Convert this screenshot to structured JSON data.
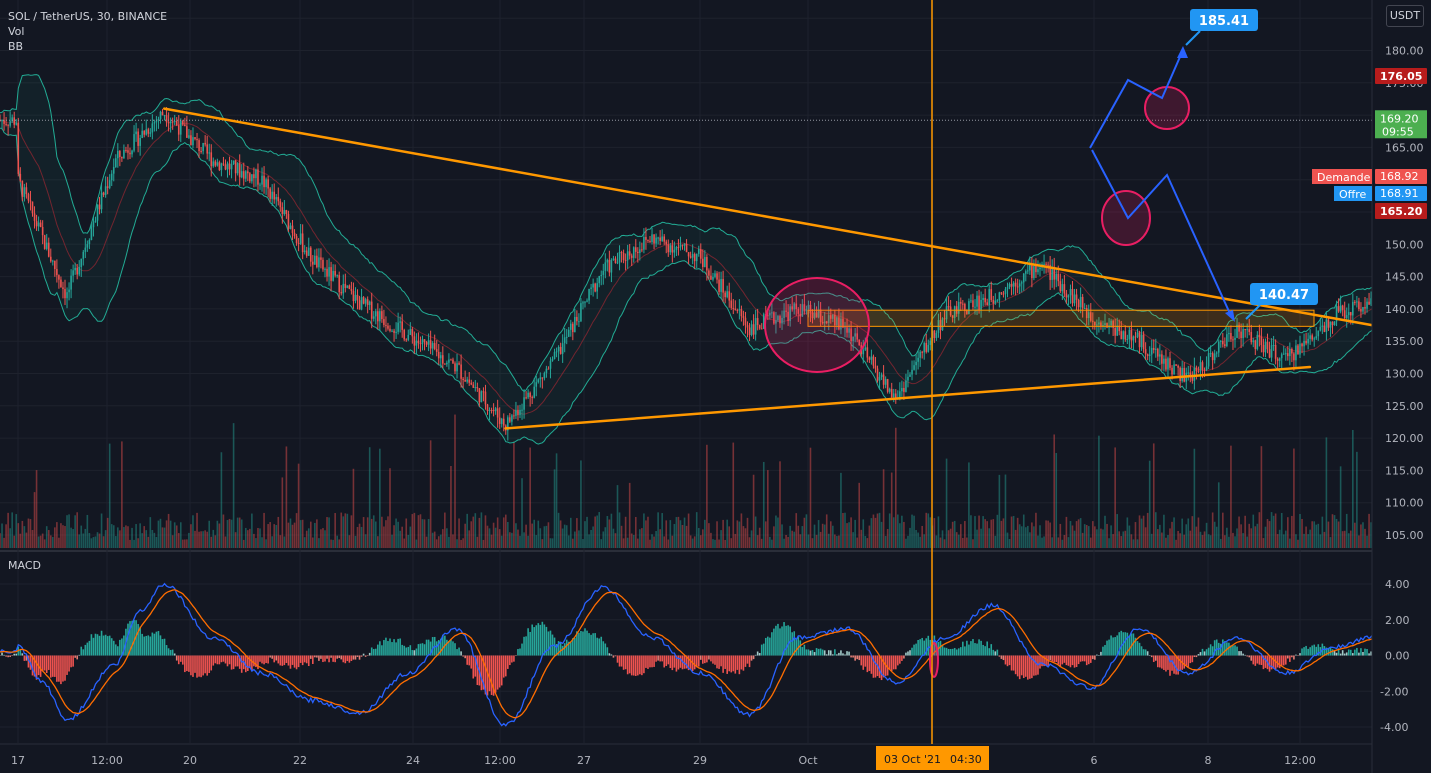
{
  "header": {
    "title": "SOL / TetherUS, 30, BINANCE",
    "vol_label": "Vol",
    "bb_label": "BB",
    "macd_label": "MACD",
    "currency": "USDT"
  },
  "chart_data": [
    {
      "type": "candlestick",
      "title": "SOL / TetherUS, 30, BINANCE",
      "ylabel": "USDT",
      "ylim": [
        103,
        190
      ],
      "y_ticks": [
        "185.00",
        "180.00",
        "175.00",
        "170.00",
        "165.00",
        "160.00",
        "155.00",
        "150.00",
        "145.00",
        "140.00",
        "135.00",
        "130.00",
        "125.00",
        "120.00",
        "115.00",
        "110.00",
        "105.00"
      ],
      "x_ticks": [
        "17",
        "12:00",
        "20",
        "22",
        "24",
        "12:00",
        "27",
        "29",
        "Oct",
        "6",
        "8",
        "12:00"
      ],
      "series_points": [
        [
          "17 Sep",
          160
        ],
        [
          "17 Sep 12:00",
          142
        ],
        [
          "18 Sep",
          163
        ],
        [
          "18 Sep 12:00",
          170.5
        ],
        [
          "19 Sep",
          163
        ],
        [
          "19 Sep 12:00",
          160
        ],
        [
          "20 Sep",
          148
        ],
        [
          "20 Sep 12:00",
          141
        ],
        [
          "21 Sep",
          136
        ],
        [
          "21 Sep 12:00",
          131
        ],
        [
          "22 Sep",
          122
        ],
        [
          "22 Sep 12:00",
          132
        ],
        [
          "23 Sep",
          146
        ],
        [
          "23 Sep 12:00",
          151
        ],
        [
          "24 Sep",
          148
        ],
        [
          "24 Sep 12:00",
          137
        ],
        [
          "25 Sep",
          140
        ],
        [
          "25 Sep 12:00",
          137
        ],
        [
          "26 Sep",
          126
        ],
        [
          "26 Sep 12:00",
          139
        ],
        [
          "27 Sep",
          142
        ],
        [
          "27 Sep 12:00",
          147
        ],
        [
          "28 Sep",
          139
        ],
        [
          "28 Sep 12:00",
          135
        ],
        [
          "29 Sep",
          129
        ],
        [
          "29 Sep 12:00",
          137
        ],
        [
          "30 Sep",
          132
        ],
        [
          "30 Sep 12:00",
          139
        ],
        [
          "1 Oct",
          142
        ],
        [
          "1 Oct 12:00",
          154
        ],
        [
          "2 Oct",
          164
        ],
        [
          "2 Oct 12:00",
          158
        ],
        [
          "3 Oct",
          170
        ],
        [
          "3 Oct 12:00",
          174
        ],
        [
          "4 Oct",
          170
        ],
        [
          "4 Oct 12:00",
          174
        ],
        [
          "5 Oct",
          168
        ],
        [
          "5 Oct 12:00",
          169.2
        ]
      ],
      "bollinger_bands": true,
      "volume": true,
      "price_labels": {
        "last": "169.20",
        "countdown": "09:55",
        "bid_label": "Demande",
        "bid": "168.92",
        "ask_label": "Offre",
        "ask": "168.91",
        "resistance": "176.05",
        "support": "165.20"
      },
      "annotations": {
        "target_up": "185.41",
        "target_down": "140.47",
        "crosshair_date": "03 Oct '21",
        "crosshair_time": "04:30",
        "triangle_upper": [
          [
            "18 Sep 12:00",
            171
          ],
          [
            "1 Oct 06:00",
            136.5
          ]
        ],
        "triangle_lower": [
          [
            "22 Sep",
            121.5
          ],
          [
            "30 Sep 06:00",
            131
          ]
        ],
        "resistance_line": [
          [
            "3 Oct",
            176.05
          ],
          [
            "8 Oct 12:00",
            176.05
          ]
        ],
        "support_line": [
          [
            "2 Oct",
            165.2
          ],
          [
            "8 Oct 12:00",
            165.2
          ]
        ],
        "demand_zone_upper": [
          155.6,
          157.2
        ],
        "demand_zone_lower": [
          137.3,
          139.8
        ]
      },
      "colors": {
        "background": "#131722",
        "up": "#26a69a",
        "down": "#ef5350",
        "trendline": "#ff9800",
        "level": "#d32f2f",
        "projection": "#2962ff",
        "target_label": "#2196f3",
        "bb": "#22ab94",
        "last_price": "#4caf50"
      }
    },
    {
      "type": "line",
      "title": "MACD",
      "ylim": [
        -4.6,
        5
      ],
      "y_ticks": [
        "4.00",
        "2.00",
        "0.00",
        "-2.00",
        "-4.00"
      ],
      "series": [
        {
          "name": "MACD",
          "color": "#2962ff"
        },
        {
          "name": "Signal",
          "color": "#ff6d00"
        }
      ],
      "macd_points": [
        [
          "17 Sep",
          0.5
        ],
        [
          "17 Sep 06:00",
          -1.5
        ],
        [
          "17 Sep 12:00",
          -3.6
        ],
        [
          "18 Sep",
          -0.5
        ],
        [
          "18 Sep 06:00",
          2.5
        ],
        [
          "18 Sep 12:00",
          4.0
        ],
        [
          "19 Sep",
          1.0
        ],
        [
          "19 Sep 12:00",
          -1.0
        ],
        [
          "20 Sep",
          -2.5
        ],
        [
          "20 Sep 12:00",
          -3.2
        ],
        [
          "21 Sep",
          -1.0
        ],
        [
          "21 Sep 12:00",
          1.5
        ],
        [
          "22 Sep",
          -3.9
        ],
        [
          "22 Sep 12:00",
          0.5
        ],
        [
          "23 Sep",
          3.8
        ],
        [
          "23 Sep 12:00",
          1.0
        ],
        [
          "24 Sep",
          -1.0
        ],
        [
          "24 Sep 12:00",
          -3.3
        ],
        [
          "25 Sep",
          1.0
        ],
        [
          "25 Sep 12:00",
          1.5
        ],
        [
          "26 Sep",
          -1.5
        ],
        [
          "26 Sep 12:00",
          1.0
        ],
        [
          "27 Sep",
          2.8
        ],
        [
          "27 Sep 12:00",
          -0.5
        ],
        [
          "28 Sep",
          -1.8
        ],
        [
          "28 Sep 12:00",
          1.5
        ],
        [
          "29 Sep",
          -1.0
        ],
        [
          "29 Sep 12:00",
          1.0
        ],
        [
          "30 Sep",
          -1.0
        ],
        [
          "30 Sep 12:00",
          0.5
        ],
        [
          "1 Oct",
          1.2
        ],
        [
          "1 Oct 12:00",
          4.6
        ],
        [
          "2 Oct",
          0.5
        ],
        [
          "2 Oct 12:00",
          3.2
        ],
        [
          "3 Oct",
          -1.4
        ],
        [
          "3 Oct 12:00",
          1.0
        ],
        [
          "4 Oct",
          -0.8
        ],
        [
          "4 Oct 12:00",
          -1.0
        ],
        [
          "5 Oct",
          0.0
        ],
        [
          "5 Oct 12:00",
          0.2
        ]
      ]
    }
  ]
}
